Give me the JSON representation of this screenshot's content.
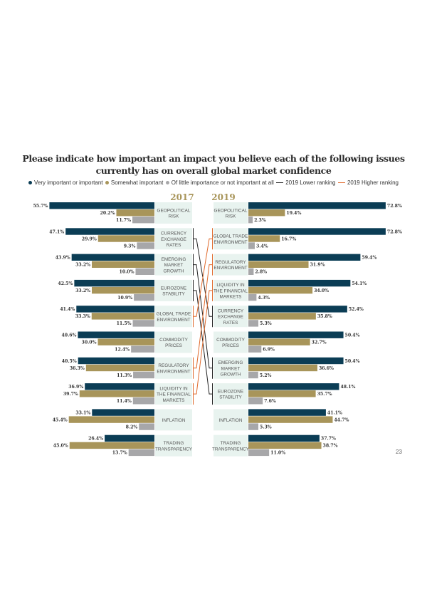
{
  "title_line1": "Please indicate how important an impact you believe each of the following issues",
  "title_line2": "currently has on overall global market confidence",
  "legend": [
    {
      "label": "Very important or important",
      "color": "#0b3d55",
      "marker": "dot"
    },
    {
      "label": "Somewhat important",
      "color": "#a8955a",
      "marker": "dot"
    },
    {
      "label": "Of little importance or not important at all",
      "color": "#a7a7a9",
      "marker": "dot"
    },
    {
      "label": "2019 Lower ranking",
      "color": "#222222",
      "marker": "line"
    },
    {
      "label": "2019 Higher ranking",
      "color": "#e06a2c",
      "marker": "line"
    }
  ],
  "page_number": "23",
  "chart_data": {
    "type": "bar",
    "orientation": "horizontal",
    "years": [
      "2017",
      "2019"
    ],
    "series_names": [
      "Very important or important",
      "Somewhat important",
      "Of little importance or not important at all"
    ],
    "colors": {
      "very": "#0b3d55",
      "somewhat": "#a8955a",
      "little": "#a7a7a9",
      "label_box": "#e8f3ef",
      "year": "#a8955a",
      "lower": "#222222",
      "higher": "#e06a2c"
    },
    "y2017": [
      {
        "label": [
          "GEOPOLITICAL",
          "RISK"
        ],
        "values": [
          55.7,
          20.2,
          11.7
        ]
      },
      {
        "label": [
          "CURRENCY",
          "EXCHANGE",
          "RATES"
        ],
        "values": [
          47.1,
          29.9,
          9.3
        ]
      },
      {
        "label": [
          "EMERGING",
          "MARKET",
          "GROWTH"
        ],
        "values": [
          43.9,
          33.2,
          10.0
        ]
      },
      {
        "label": [
          "EUROZONE",
          "STABILITY"
        ],
        "values": [
          42.5,
          33.2,
          10.9
        ]
      },
      {
        "label": [
          "GLOBAL TRADE",
          "ENVIRONMENT"
        ],
        "values": [
          41.4,
          33.3,
          11.5
        ]
      },
      {
        "label": [
          "COMMODITY",
          "PRICES"
        ],
        "values": [
          40.6,
          30.0,
          12.4
        ]
      },
      {
        "label": [
          "REGULATORY",
          "ENVIRONMENT"
        ],
        "values": [
          40.5,
          36.3,
          11.3
        ]
      },
      {
        "label": [
          "LIQUIDITY IN",
          "THE FINANCIAL",
          "MARKETS"
        ],
        "values": [
          36.9,
          39.7,
          11.4
        ]
      },
      {
        "label": [
          "INFLATION"
        ],
        "values": [
          33.1,
          45.4,
          8.2
        ]
      },
      {
        "label": [
          "TRADING",
          "TRANSPARENCY"
        ],
        "values": [
          26.4,
          45.0,
          13.7
        ]
      }
    ],
    "y2019": [
      {
        "label": [
          "GEOPOLITICAL",
          "RISK"
        ],
        "values": [
          72.8,
          19.4,
          2.3
        ]
      },
      {
        "label": [
          "GLOBAL TRADE",
          "ENVIRONMENT"
        ],
        "values": [
          72.8,
          16.7,
          3.4
        ]
      },
      {
        "label": [
          "REGULATORY",
          "ENVIRONMENT"
        ],
        "values": [
          59.4,
          31.9,
          2.8
        ]
      },
      {
        "label": [
          "LIQUIDITY IN",
          "THE FINANCIAL",
          "MARKETS"
        ],
        "values": [
          54.1,
          34.0,
          4.3
        ]
      },
      {
        "label": [
          "CURRENCY",
          "EXCHANGE",
          "RATES"
        ],
        "values": [
          52.4,
          35.8,
          5.3
        ]
      },
      {
        "label": [
          "COMMODITY",
          "PRICES"
        ],
        "values": [
          50.4,
          32.7,
          6.9
        ]
      },
      {
        "label": [
          "EMERGING",
          "MARKET",
          "GROWTH"
        ],
        "values": [
          50.4,
          36.6,
          5.2
        ]
      },
      {
        "label": [
          "EUROZONE",
          "STABILITY"
        ],
        "values": [
          48.1,
          35.7,
          7.6
        ]
      },
      {
        "label": [
          "INFLATION"
        ],
        "values": [
          41.1,
          44.7,
          5.3
        ]
      },
      {
        "label": [
          "TRADING",
          "TRANSPARENCY"
        ],
        "values": [
          37.7,
          38.7,
          11.0
        ]
      }
    ],
    "rank_changes": [
      {
        "from": 1,
        "to": 4,
        "direction": "lower"
      },
      {
        "from": 2,
        "to": 6,
        "direction": "lower"
      },
      {
        "from": 3,
        "to": 7,
        "direction": "lower"
      },
      {
        "from": 4,
        "to": 1,
        "direction": "higher"
      },
      {
        "from": 6,
        "to": 2,
        "direction": "higher"
      },
      {
        "from": 7,
        "to": 3,
        "direction": "higher"
      }
    ]
  }
}
